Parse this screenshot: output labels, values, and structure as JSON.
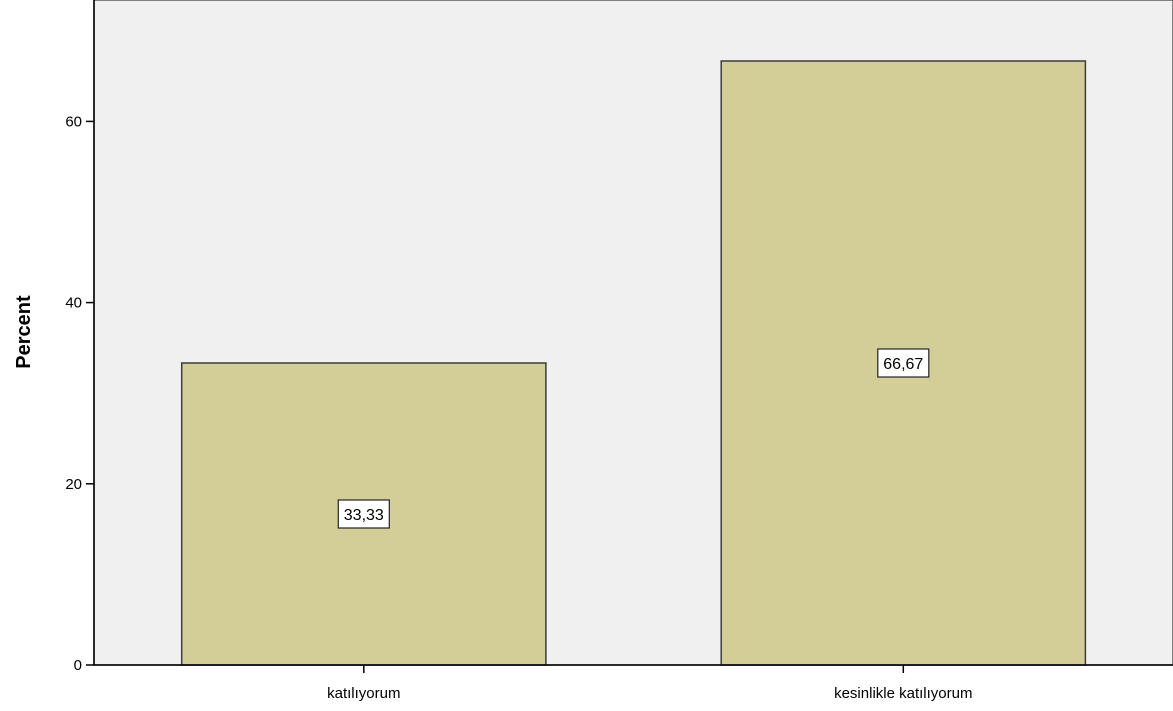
{
  "chart_data": {
    "type": "bar",
    "title": "",
    "xlabel": "",
    "ylabel": "Percent",
    "categories": [
      "katılıyorum",
      "kesinlikle katılıyorum"
    ],
    "values": [
      33.33,
      66.67
    ],
    "data_labels": [
      "33,33",
      "66,67"
    ],
    "yticks": [
      0,
      20,
      40,
      60
    ],
    "ylim": [
      0,
      73.4
    ],
    "grid": false,
    "legend": "none",
    "colors": {
      "bar_fill": "#d3ce97",
      "bar_stroke": "#3c3c3c",
      "plot_background": "#f0f0f0",
      "axis": "#000000",
      "page_background": "#ffffff",
      "label_box_fill": "#ffffff"
    }
  }
}
